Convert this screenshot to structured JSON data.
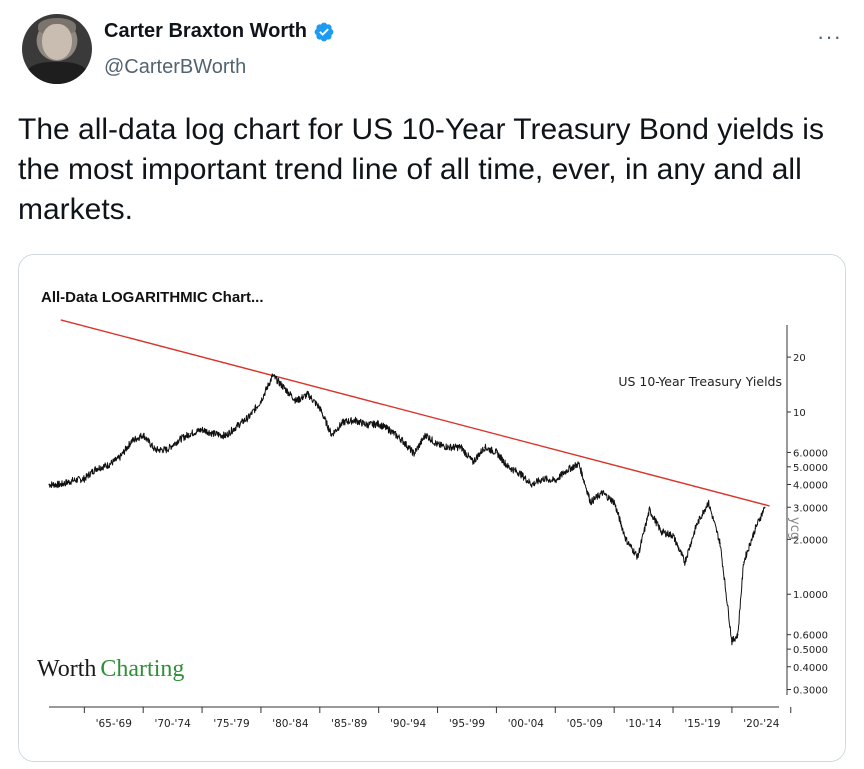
{
  "author": {
    "display_name": "Carter Braxton Worth",
    "handle": "@CarterBWorth",
    "verified_icon": "verified-badge-icon",
    "accent_color": "#1d9bf0"
  },
  "more_label": "···",
  "tweet": {
    "text": "The all-data log chart for US 10-Year Treasury Bond yields is the most important trend line of all time, ever, in any and all markets."
  },
  "chart_data": {
    "type": "line",
    "title": "All-Data LOGARITHMIC Chart...",
    "series": [
      {
        "name": "US 10-Year Treasury Yields",
        "color": "#111111",
        "x": [
          1962,
          1963,
          1964,
          1965,
          1966,
          1967,
          1968,
          1969,
          1970,
          1971,
          1972,
          1973,
          1974,
          1975,
          1976,
          1977,
          1978,
          1979,
          1980,
          1981,
          1982,
          1983,
          1984,
          1985,
          1986,
          1987,
          1988,
          1989,
          1990,
          1991,
          1992,
          1993,
          1994,
          1995,
          1996,
          1997,
          1998,
          1999,
          2000,
          2001,
          2002,
          2003,
          2004,
          2005,
          2006,
          2007,
          2008,
          2009,
          2010,
          2011,
          2012,
          2013,
          2014,
          2015,
          2016,
          2017,
          2018,
          2019,
          2020,
          2020.5,
          2021,
          2022,
          2022.8
        ],
        "y": [
          4.0,
          4.0,
          4.2,
          4.3,
          4.9,
          5.1,
          5.6,
          6.9,
          7.5,
          6.2,
          6.2,
          7.0,
          7.6,
          8.0,
          7.6,
          7.4,
          8.4,
          9.4,
          11.5,
          15.8,
          13.5,
          11.5,
          12.5,
          10.5,
          7.5,
          8.8,
          9.0,
          8.5,
          8.6,
          7.9,
          7.0,
          5.9,
          7.5,
          6.6,
          6.4,
          6.4,
          5.3,
          6.4,
          6.0,
          5.0,
          4.6,
          4.0,
          4.3,
          4.2,
          4.8,
          5.2,
          3.2,
          3.6,
          3.2,
          2.0,
          1.6,
          2.9,
          2.2,
          2.1,
          1.5,
          2.4,
          3.2,
          1.9,
          0.55,
          0.6,
          1.5,
          2.3,
          3.0
        ]
      }
    ],
    "trendline": {
      "color": "#d9342b",
      "x": [
        1963,
        2023.2
      ],
      "y": [
        32,
        3.05
      ]
    },
    "y_axis": {
      "scale": "log",
      "ticks": [
        20,
        10,
        6,
        5,
        4,
        3,
        2,
        1,
        0.6,
        0.5,
        0.4,
        0.3
      ],
      "tick_labels": [
        "20",
        "10",
        "6.0000",
        "5.0000",
        "4.0000",
        "3.0000",
        "2.0000",
        "1.0000",
        "0.6000",
        "0.5000",
        "0.4000",
        "0.3000"
      ],
      "position": "right"
    },
    "x_axis": {
      "range": [
        1962,
        2024
      ],
      "tick_labels": [
        "'65-'69",
        "'70-'74",
        "'75-'79",
        "'80-'84",
        "'85-'89",
        "'90-'94",
        "'95-'99",
        "'00-'04",
        "'05-'09",
        "'10-'14",
        "'15-'19",
        "'20-'24"
      ]
    },
    "series_label": "US 10-Year Treasury Yields",
    "brand": {
      "prefix": "Worth",
      "suffix": "Charting",
      "prefix_color": "#1a1a1a",
      "suffix_color": "#2f8f3a"
    },
    "watermark": "ycg"
  }
}
